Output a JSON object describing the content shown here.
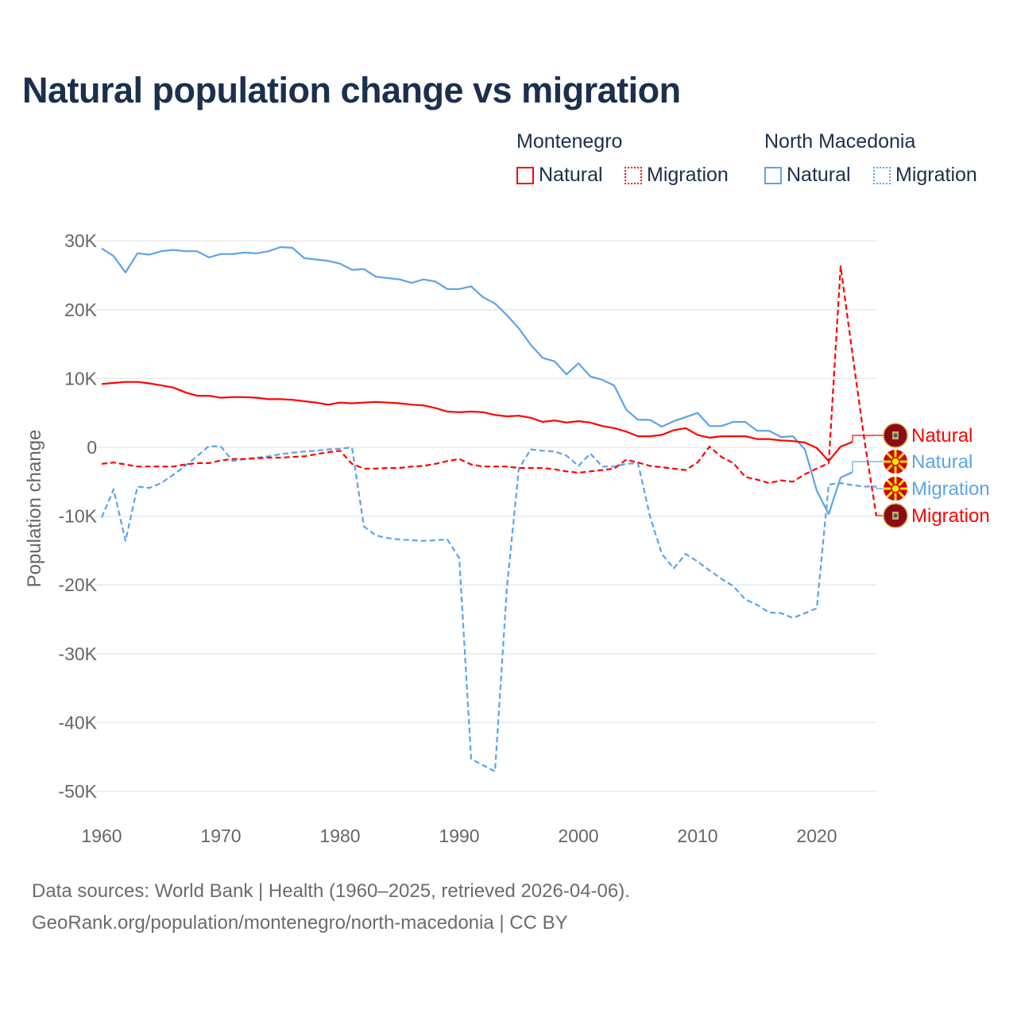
{
  "title": "Natural population change vs migration",
  "legend": {
    "groups": [
      {
        "name": "Montenegro",
        "items": [
          "Natural",
          "Migration"
        ]
      },
      {
        "name": "North Macedonia",
        "items": [
          "Natural",
          "Migration"
        ]
      }
    ]
  },
  "footer": {
    "line1": "Data sources: World Bank | Health (1960–2025, retrieved 2026-04-06).",
    "line2": "GeoRank.org/population/montenegro/north-macedonia | CC BY"
  },
  "colors": {
    "montenegro": "#ff0000",
    "north_macedonia": "#5ba4ea",
    "title": "#1b2f4e"
  },
  "chart_data": {
    "type": "line",
    "title": "Natural population change vs migration",
    "xlabel": "",
    "ylabel": "Population change",
    "xlim": [
      1960,
      2025
    ],
    "ylim": [
      -50000,
      30000
    ],
    "grid": true,
    "legend_placement": "top-right",
    "x_ticks": [
      1960,
      1970,
      1980,
      1990,
      2000,
      2010,
      2020
    ],
    "x_tick_labels": [
      "1960",
      "1970",
      "1980",
      "1990",
      "2000",
      "2010",
      "2020"
    ],
    "y_ticks": [
      30000,
      20000,
      10000,
      0,
      -10000,
      -20000,
      -30000,
      -40000,
      -50000
    ],
    "y_tick_labels": [
      "30K",
      "20K",
      "10K",
      "0",
      "-10K",
      "-20K",
      "-30K",
      "-40K",
      "-50K"
    ],
    "series": [
      {
        "name": "North Macedonia Natural",
        "label": "Natural",
        "country": "North Macedonia",
        "style": "solid",
        "color": "#5ba4ea",
        "start": 1960,
        "values": [
          28900,
          27800,
          25400,
          28200,
          28000,
          28500,
          28700,
          28500,
          28500,
          27600,
          28100,
          28100,
          28300,
          28200,
          28500,
          29100,
          29000,
          27500,
          27300,
          27100,
          26700,
          25800,
          25900,
          24800,
          24600,
          24400,
          23900,
          24400,
          24100,
          23000,
          23000,
          23400,
          21800,
          20900,
          19200,
          17300,
          14900,
          13000,
          12500,
          10600,
          12200,
          10300,
          9800,
          9000,
          5500,
          4000,
          4000,
          3000,
          3800,
          4400,
          5000,
          3100,
          3100,
          3700,
          3700,
          2400,
          2400,
          1500,
          1600,
          -300,
          -6300,
          -9700,
          -4400,
          -3600
        ]
      },
      {
        "name": "North Macedonia Migration",
        "label": "Migration",
        "country": "North Macedonia",
        "style": "dashed",
        "color": "#5ba4ea",
        "start": 1960,
        "values": [
          -10200,
          -6100,
          -13600,
          -5700,
          -5900,
          -5200,
          -4000,
          -2700,
          -1300,
          200,
          100,
          -2000,
          -1700,
          -1500,
          -1300,
          -1000,
          -800,
          -600,
          -500,
          -300,
          -200,
          0,
          -11500,
          -12800,
          -13200,
          -13400,
          -13500,
          -13600,
          -13500,
          -13400,
          -16100,
          -45300,
          -46200,
          -47100,
          -20400,
          -3100,
          -300,
          -500,
          -600,
          -1200,
          -2700,
          -900,
          -2800,
          -2800,
          -2400,
          -2300,
          -10000,
          -15500,
          -17600,
          -15500,
          -16600,
          -17900,
          -19100,
          -20200,
          -22100,
          -22900,
          -24000,
          -24100,
          -24800,
          -24100,
          -23400,
          -5400,
          -5200,
          -5500,
          -5700,
          -5700
        ]
      },
      {
        "name": "Montenegro Natural",
        "label": "Natural",
        "country": "Montenegro",
        "style": "solid",
        "color": "#ff0000",
        "start": 1960,
        "values": [
          9200,
          9350,
          9500,
          9500,
          9300,
          9000,
          8700,
          8000,
          7500,
          7500,
          7200,
          7300,
          7300,
          7200,
          7000,
          7000,
          6900,
          6700,
          6500,
          6200,
          6500,
          6400,
          6500,
          6600,
          6500,
          6400,
          6200,
          6100,
          5700,
          5200,
          5100,
          5200,
          5100,
          4700,
          4500,
          4600,
          4300,
          3700,
          3900,
          3600,
          3800,
          3600,
          3100,
          2800,
          2300,
          1600,
          1600,
          1800,
          2500,
          2800,
          1800,
          1400,
          1600,
          1600,
          1600,
          1200,
          1200,
          1000,
          900,
          700,
          -100,
          -2000,
          100,
          800
        ]
      },
      {
        "name": "Montenegro Migration",
        "label": "Migration",
        "country": "Montenegro",
        "style": "dashed",
        "color": "#ff0000",
        "start": 1960,
        "values": [
          -2400,
          -2200,
          -2500,
          -2800,
          -2800,
          -2800,
          -2800,
          -2500,
          -2300,
          -2300,
          -1900,
          -1700,
          -1700,
          -1600,
          -1500,
          -1500,
          -1400,
          -1300,
          -1000,
          -700,
          -500,
          -2400,
          -3100,
          -3100,
          -3000,
          -3000,
          -2800,
          -2700,
          -2400,
          -2000,
          -1700,
          -2500,
          -2800,
          -2800,
          -2800,
          -3000,
          -3000,
          -3000,
          -3200,
          -3500,
          -3700,
          -3500,
          -3300,
          -3100,
          -1800,
          -2200,
          -2700,
          -2900,
          -3100,
          -3300,
          -2200,
          100,
          -1400,
          -2300,
          -4300,
          -4700,
          -5200,
          -4800,
          -5000,
          -3900,
          -3100,
          -2300,
          26300,
          13500,
          1000,
          -10000
        ]
      }
    ]
  }
}
